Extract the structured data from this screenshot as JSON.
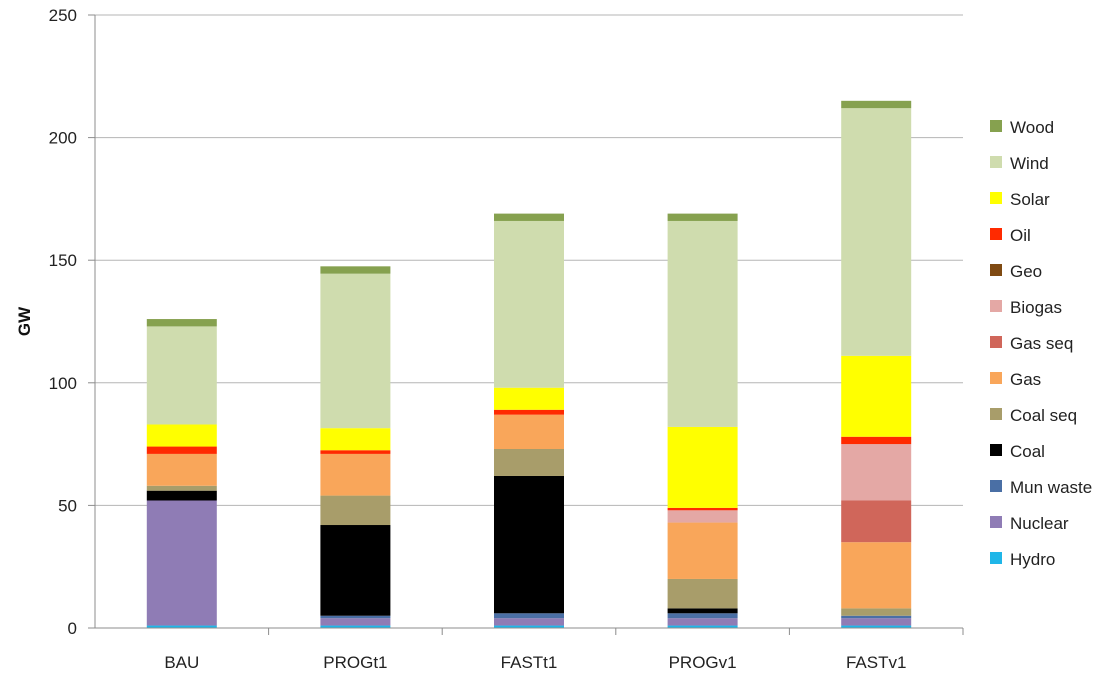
{
  "chart_data": {
    "type": "bar",
    "stacked": true,
    "title": "",
    "xlabel": "",
    "ylabel": "GW",
    "ylim": [
      0,
      250
    ],
    "yticks": [
      0,
      50,
      100,
      150,
      200,
      250
    ],
    "grid": true,
    "legend_position": "right",
    "categories": [
      "BAU",
      "PROGt1",
      "FASTt1",
      "PROGv1",
      "FASTv1"
    ],
    "series": [
      {
        "name": "Hydro",
        "color": "#1fb6e8",
        "values": [
          1,
          1,
          1,
          1,
          1
        ]
      },
      {
        "name": "Nuclear",
        "color": "#8f7cb5",
        "values": [
          51,
          3,
          3,
          3,
          3
        ]
      },
      {
        "name": "Mun waste",
        "color": "#4a6fa5",
        "values": [
          0,
          1,
          2,
          2,
          1
        ]
      },
      {
        "name": "Coal",
        "color": "#000000",
        "values": [
          4,
          37,
          56,
          2,
          0
        ]
      },
      {
        "name": "Coal seq",
        "color": "#a89d6a",
        "values": [
          2,
          12,
          11,
          12,
          3
        ]
      },
      {
        "name": "Gas",
        "color": "#f9a65a",
        "values": [
          13,
          17,
          14,
          23,
          27
        ]
      },
      {
        "name": "Gas seq",
        "color": "#d0665a",
        "values": [
          0,
          0,
          0,
          0,
          17
        ]
      },
      {
        "name": "Biogas",
        "color": "#e4a8a5",
        "values": [
          0,
          0,
          0,
          5,
          23
        ]
      },
      {
        "name": "Geo",
        "color": "#7f4a12",
        "values": [
          0,
          0,
          0,
          0,
          0
        ]
      },
      {
        "name": "Oil",
        "color": "#ff2a00",
        "values": [
          3,
          1.5,
          2,
          1,
          3
        ]
      },
      {
        "name": "Solar",
        "color": "#ffff00",
        "values": [
          9,
          9,
          9,
          33,
          33
        ]
      },
      {
        "name": "Wind",
        "color": "#cfdcae",
        "values": [
          40,
          63,
          68,
          84,
          101
        ]
      },
      {
        "name": "Wood",
        "color": "#86a14f",
        "values": [
          3,
          3,
          3,
          3,
          3
        ]
      }
    ]
  }
}
